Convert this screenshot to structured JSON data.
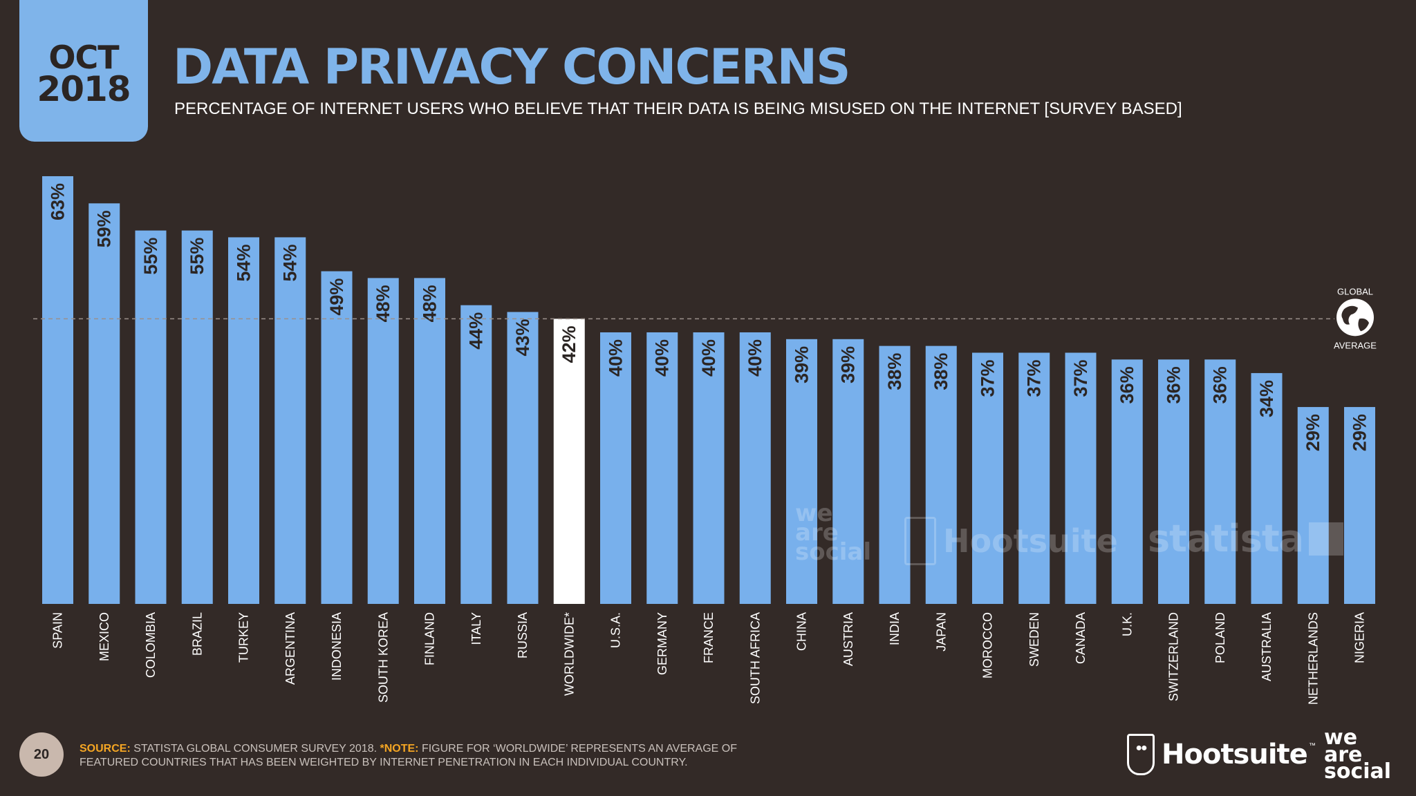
{
  "header": {
    "month": "OCT",
    "year": "2018",
    "title": "DATA PRIVACY CONCERNS",
    "subtitle": "PERCENTAGE OF INTERNET USERS WHO BELIEVE THAT THEIR DATA IS BEING MISUSED ON THE INTERNET [SURVEY BASED]"
  },
  "chart_data": {
    "type": "bar",
    "categories": [
      "SPAIN",
      "MEXICO",
      "COLOMBIA",
      "BRAZIL",
      "TURKEY",
      "ARGENTINA",
      "INDONESIA",
      "SOUTH KOREA",
      "FINLAND",
      "ITALY",
      "RUSSIA",
      "WORLDWIDE*",
      "U.S.A.",
      "GERMANY",
      "FRANCE",
      "SOUTH AFRICA",
      "CHINA",
      "AUSTRIA",
      "INDIA",
      "JAPAN",
      "MOROCCO",
      "SWEDEN",
      "CANADA",
      "U.K.",
      "SWITZERLAND",
      "POLAND",
      "AUSTRALIA",
      "NETHERLANDS",
      "NIGERIA"
    ],
    "values": [
      63,
      59,
      55,
      55,
      54,
      54,
      49,
      48,
      48,
      44,
      43,
      42,
      40,
      40,
      40,
      40,
      39,
      39,
      38,
      38,
      37,
      37,
      37,
      36,
      36,
      36,
      34,
      29,
      29
    ],
    "value_labels": [
      "63%",
      "59%",
      "55%",
      "55%",
      "54%",
      "54%",
      "49%",
      "48%",
      "48%",
      "44%",
      "43%",
      "42%",
      "40%",
      "40%",
      "40%",
      "40%",
      "39%",
      "39%",
      "38%",
      "38%",
      "37%",
      "37%",
      "37%",
      "36%",
      "36%",
      "36%",
      "34%",
      "29%",
      "29%"
    ],
    "highlight_category": "WORLDWIDE*",
    "reference_line": {
      "value": 42,
      "label_top": "GLOBAL",
      "label_bottom": "AVERAGE"
    },
    "ylim": [
      0,
      63
    ],
    "grid": false,
    "legend": "none",
    "colors": {
      "bar": "#78b0ec",
      "highlight": "#ffffff",
      "value_text": "#2b2523",
      "category_text": "#ffffff",
      "reference_line": "#9a908b",
      "background": "#332a27"
    }
  },
  "watermarks": {
    "we_are_social": [
      "we",
      "are",
      "social"
    ],
    "hootsuite": "Hootsuite",
    "statista": "statista"
  },
  "footer": {
    "page_number": "20",
    "source_label": "SOURCE:",
    "source_text": " STATISTA GLOBAL CONSUMER SURVEY 2018. ",
    "note_label": "*NOTE:",
    "note_text": " FIGURE FOR ‘WORLDWIDE’ REPRESENTS AN AVERAGE OF FEATURED COUNTRIES THAT HAS BEEN WEIGHTED BY INTERNET PENETRATION IN EACH INDIVIDUAL COUNTRY.",
    "brand_hootsuite": "Hootsuite",
    "brand_hootsuite_tm": "™",
    "brand_was": [
      "we",
      "are",
      "social"
    ]
  }
}
